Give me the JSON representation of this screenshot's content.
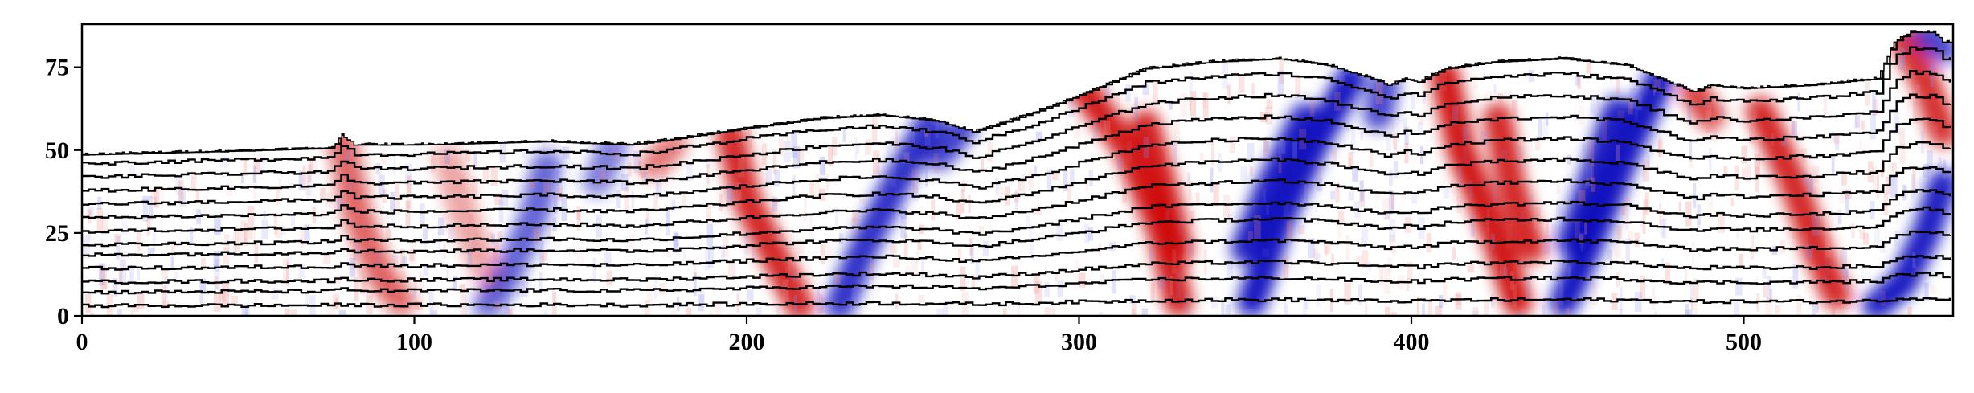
{
  "chart_data": {
    "type": "heatmap",
    "title": "",
    "xlabel": "",
    "ylabel": "",
    "xlim": [
      0,
      563
    ],
    "ylim": [
      0,
      88
    ],
    "x_ticks": [
      0,
      100,
      200,
      300,
      400,
      500
    ],
    "y_ticks": [
      0,
      25,
      50,
      75
    ],
    "colormap": "seismic (blue-white-red)",
    "colors": {
      "positive": "#cc0000",
      "negative": "#0000bb",
      "zero": "#ffffff",
      "lines": "#000000"
    },
    "surface_profile": [
      [
        0,
        49
      ],
      [
        40,
        50
      ],
      [
        75,
        51
      ],
      [
        78,
        55
      ],
      [
        82,
        52
      ],
      [
        100,
        52
      ],
      [
        140,
        53
      ],
      [
        165,
        52
      ],
      [
        180,
        54
      ],
      [
        200,
        57
      ],
      [
        222,
        60
      ],
      [
        240,
        61
      ],
      [
        250,
        60
      ],
      [
        258,
        59
      ],
      [
        268,
        56
      ],
      [
        272,
        57
      ],
      [
        290,
        63
      ],
      [
        305,
        69
      ],
      [
        320,
        75
      ],
      [
        340,
        77
      ],
      [
        360,
        78
      ],
      [
        375,
        76
      ],
      [
        388,
        72
      ],
      [
        393,
        70
      ],
      [
        398,
        72
      ],
      [
        402,
        71
      ],
      [
        410,
        75
      ],
      [
        425,
        77
      ],
      [
        445,
        78
      ],
      [
        465,
        76
      ],
      [
        477,
        71
      ],
      [
        485,
        68
      ],
      [
        490,
        70
      ],
      [
        500,
        69
      ],
      [
        520,
        70
      ],
      [
        540,
        72
      ],
      [
        545,
        83
      ],
      [
        550,
        86
      ],
      [
        557,
        86
      ],
      [
        560,
        83
      ],
      [
        563,
        83
      ]
    ],
    "anomalies": [
      {
        "sign": "positive",
        "path": [
          [
            78,
            54
          ],
          [
            83,
            30
          ],
          [
            90,
            12
          ],
          [
            96,
            4
          ]
        ],
        "strength": 0.55
      },
      {
        "sign": "positive",
        "path": [
          [
            110,
            48
          ],
          [
            115,
            30
          ],
          [
            122,
            12
          ]
        ],
        "strength": 0.3
      },
      {
        "sign": "negative",
        "path": [
          [
            140,
            46
          ],
          [
            136,
            30
          ],
          [
            128,
            12
          ],
          [
            122,
            3
          ]
        ],
        "strength": 0.55
      },
      {
        "sign": "negative",
        "path": [
          [
            160,
            52
          ],
          [
            155,
            40
          ]
        ],
        "strength": 0.45
      },
      {
        "sign": "positive",
        "path": [
          [
            178,
            52
          ],
          [
            172,
            45
          ]
        ],
        "strength": 0.45
      },
      {
        "sign": "positive",
        "path": [
          [
            195,
            55
          ],
          [
            200,
            35
          ],
          [
            210,
            15
          ],
          [
            216,
            3
          ]
        ],
        "strength": 0.85
      },
      {
        "sign": "negative",
        "path": [
          [
            255,
            58
          ],
          [
            245,
            40
          ],
          [
            235,
            20
          ],
          [
            228,
            3
          ]
        ],
        "strength": 0.8
      },
      {
        "sign": "negative",
        "path": [
          [
            265,
            57
          ],
          [
            258,
            48
          ]
        ],
        "strength": 0.7
      },
      {
        "sign": "positive",
        "path": [
          [
            300,
            70
          ],
          [
            315,
            50
          ],
          [
            325,
            25
          ],
          [
            330,
            4
          ]
        ],
        "strength": 0.9
      },
      {
        "sign": "positive",
        "path": [
          [
            320,
            58
          ],
          [
            325,
            40
          ],
          [
            330,
            20
          ]
        ],
        "strength": 0.9
      },
      {
        "sign": "negative",
        "path": [
          [
            382,
            72
          ],
          [
            370,
            50
          ],
          [
            360,
            28
          ],
          [
            352,
            4
          ]
        ],
        "strength": 0.95
      },
      {
        "sign": "negative",
        "path": [
          [
            368,
            60
          ],
          [
            358,
            40
          ],
          [
            350,
            20
          ]
        ],
        "strength": 0.9
      },
      {
        "sign": "positive",
        "path": [
          [
            410,
            73
          ],
          [
            415,
            50
          ],
          [
            425,
            25
          ],
          [
            432,
            4
          ]
        ],
        "strength": 0.95
      },
      {
        "sign": "positive",
        "path": [
          [
            426,
            60
          ],
          [
            430,
            40
          ],
          [
            436,
            20
          ]
        ],
        "strength": 0.85
      },
      {
        "sign": "negative",
        "path": [
          [
            475,
            72
          ],
          [
            465,
            50
          ],
          [
            455,
            25
          ],
          [
            446,
            4
          ]
        ],
        "strength": 0.95
      },
      {
        "sign": "negative",
        "path": [
          [
            462,
            62
          ],
          [
            455,
            42
          ],
          [
            448,
            22
          ]
        ],
        "strength": 0.9
      },
      {
        "sign": "negative",
        "path": [
          [
            392,
            70
          ],
          [
            390,
            60
          ]
        ],
        "strength": 0.7
      },
      {
        "sign": "positive",
        "path": [
          [
            485,
            68
          ],
          [
            490,
            60
          ]
        ],
        "strength": 0.7
      },
      {
        "sign": "positive",
        "path": [
          [
            505,
            62
          ],
          [
            515,
            40
          ],
          [
            522,
            20
          ],
          [
            528,
            6
          ]
        ],
        "strength": 0.85
      },
      {
        "sign": "negative",
        "path": [
          [
            560,
            40
          ],
          [
            555,
            25
          ],
          [
            548,
            10
          ],
          [
            540,
            3
          ]
        ],
        "strength": 0.9
      },
      {
        "sign": "positive",
        "path": [
          [
            548,
            84
          ],
          [
            555,
            70
          ],
          [
            560,
            55
          ]
        ],
        "strength": 0.8
      },
      {
        "sign": "negative",
        "path": [
          [
            555,
            85
          ],
          [
            560,
            80
          ]
        ],
        "strength": 0.7
      }
    ],
    "horizon_lines": [
      3,
      7,
      10,
      14,
      18,
      21,
      25,
      29,
      33,
      37,
      41,
      45,
      48
    ],
    "grid": false,
    "legend": "none"
  }
}
